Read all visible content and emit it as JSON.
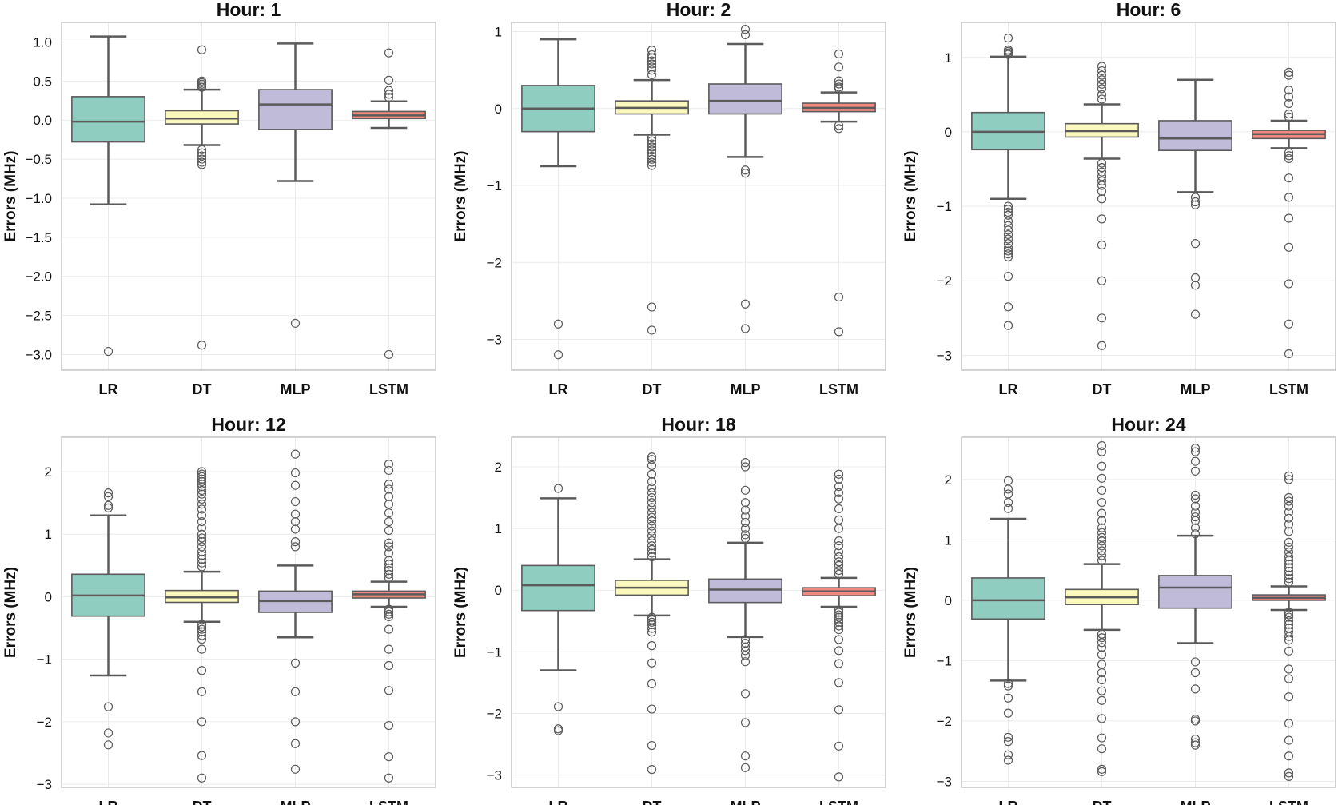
{
  "colors": {
    "LR": "#8fcdc1",
    "DT": "#fbf8bd",
    "MLP": "#bfbbd9",
    "LSTM": "#f08a80",
    "line": "#5b5b5b",
    "grid": "#ebebeb",
    "frame": "#c8c8c8"
  },
  "chart_data": [
    {
      "type": "box",
      "title": "Hour: 1",
      "ylabel": "Errors (MHz)",
      "ylim": [
        -3.2,
        1.25
      ],
      "yticks": [
        1.0,
        0.5,
        0.0,
        -0.5,
        -1.0,
        -1.5,
        -2.0,
        -2.5,
        -3.0
      ],
      "ytick_labels": [
        "1.0",
        "0.5",
        "0.0",
        "−0.5",
        "−1.0",
        "−1.5",
        "−2.0",
        "−2.5",
        "−3.0"
      ],
      "categories": [
        "LR",
        "DT",
        "MLP",
        "LSTM"
      ],
      "boxes": [
        {
          "name": "LR",
          "q1": -0.28,
          "median": -0.02,
          "q3": 0.3,
          "whislo": -1.08,
          "whishi": 1.07,
          "fliers": [
            -2.96
          ]
        },
        {
          "name": "DT",
          "q1": -0.05,
          "median": 0.02,
          "q3": 0.12,
          "whislo": -0.32,
          "whishi": 0.39,
          "fliers": [
            0.9,
            0.5,
            0.48,
            0.46,
            0.44,
            0.42,
            -0.38,
            -0.42,
            -0.46,
            -0.5,
            -0.54,
            -0.57,
            -2.88
          ]
        },
        {
          "name": "MLP",
          "q1": -0.12,
          "median": 0.2,
          "q3": 0.39,
          "whislo": -0.78,
          "whishi": 0.98,
          "fliers": [
            -2.6
          ]
        },
        {
          "name": "LSTM",
          "q1": 0.02,
          "median": 0.06,
          "q3": 0.11,
          "whislo": -0.1,
          "whishi": 0.24,
          "fliers": [
            0.86,
            0.51,
            0.38,
            0.33,
            0.29,
            -3.0
          ]
        }
      ]
    },
    {
      "type": "box",
      "title": "Hour: 2",
      "ylabel": "Errors (MHz)",
      "ylim": [
        -3.4,
        1.12
      ],
      "yticks": [
        1,
        0,
        -1,
        -2,
        -3
      ],
      "ytick_labels": [
        "1",
        "0",
        "−1",
        "−2",
        "−3"
      ],
      "categories": [
        "LR",
        "DT",
        "MLP",
        "LSTM"
      ],
      "boxes": [
        {
          "name": "LR",
          "q1": -0.3,
          "median": 0.0,
          "q3": 0.3,
          "whislo": -0.75,
          "whishi": 0.9,
          "fliers": [
            -2.8,
            -3.2
          ]
        },
        {
          "name": "DT",
          "q1": -0.07,
          "median": 0.01,
          "q3": 0.1,
          "whislo": -0.34,
          "whishi": 0.37,
          "fliers": [
            0.76,
            0.7,
            0.66,
            0.62,
            0.58,
            0.54,
            0.5,
            0.44,
            -0.38,
            -0.42,
            -0.46,
            -0.5,
            -0.54,
            -0.58,
            -0.62,
            -0.66,
            -0.7,
            -0.74,
            -2.58,
            -2.88
          ]
        },
        {
          "name": "MLP",
          "q1": -0.07,
          "median": 0.1,
          "q3": 0.32,
          "whislo": -0.63,
          "whishi": 0.84,
          "fliers": [
            1.03,
            0.96,
            -0.8,
            -0.84,
            -2.54,
            -2.86
          ]
        },
        {
          "name": "LSTM",
          "q1": -0.04,
          "median": 0.01,
          "q3": 0.07,
          "whislo": -0.17,
          "whishi": 0.21,
          "fliers": [
            0.71,
            0.54,
            0.36,
            0.32,
            0.28,
            0.26,
            -0.22,
            -0.26,
            -2.45,
            -2.9
          ]
        }
      ]
    },
    {
      "type": "box",
      "title": "Hour: 6",
      "ylabel": "Errors (MHz)",
      "ylim": [
        -3.2,
        1.47
      ],
      "yticks": [
        1,
        0,
        -1,
        -2,
        -3
      ],
      "ytick_labels": [
        "1",
        "0",
        "−1",
        "−2",
        "−3"
      ],
      "categories": [
        "LR",
        "DT",
        "MLP",
        "LSTM"
      ],
      "boxes": [
        {
          "name": "LR",
          "q1": -0.24,
          "median": 0.0,
          "q3": 0.26,
          "whislo": -0.9,
          "whishi": 1.01,
          "fliers": [
            1.26,
            1.1,
            1.08,
            1.06,
            1.04,
            -1.0,
            -1.04,
            -1.08,
            -1.12,
            -1.2,
            -1.26,
            -1.32,
            -1.38,
            -1.44,
            -1.5,
            -1.56,
            -1.6,
            -1.64,
            -1.68,
            -1.94,
            -2.35,
            -2.6
          ]
        },
        {
          "name": "DT",
          "q1": -0.07,
          "median": 0.01,
          "q3": 0.11,
          "whislo": -0.36,
          "whishi": 0.37,
          "fliers": [
            0.88,
            0.82,
            0.76,
            0.7,
            0.64,
            0.58,
            0.5,
            0.44,
            -0.42,
            -0.48,
            -0.54,
            -0.6,
            -0.66,
            -0.72,
            -0.8,
            -0.9,
            -1.17,
            -1.52,
            -2.0,
            -2.5,
            -2.87
          ]
        },
        {
          "name": "MLP",
          "q1": -0.25,
          "median": -0.09,
          "q3": 0.15,
          "whislo": -0.81,
          "whishi": 0.7,
          "fliers": [
            -0.88,
            -0.94,
            -0.98,
            -1.5,
            -1.96,
            -2.06,
            -2.45
          ]
        },
        {
          "name": "LSTM",
          "q1": -0.09,
          "median": -0.03,
          "q3": 0.02,
          "whislo": -0.22,
          "whishi": 0.15,
          "fliers": [
            0.8,
            0.76,
            0.56,
            0.47,
            0.38,
            0.24,
            0.2,
            -0.28,
            -0.32,
            -0.36,
            -0.62,
            -0.88,
            -1.16,
            -1.55,
            -2.04,
            -2.58,
            -2.98
          ]
        }
      ]
    },
    {
      "type": "box",
      "title": "Hour: 12",
      "ylabel": "Errors (MHz)",
      "ylim": [
        -3.05,
        2.55
      ],
      "yticks": [
        2,
        1,
        0,
        -1,
        -2,
        -3
      ],
      "ytick_labels": [
        "2",
        "1",
        "0",
        "−1",
        "−2",
        "−3"
      ],
      "categories": [
        "LR",
        "DT",
        "MLP",
        "LSTM"
      ],
      "boxes": [
        {
          "name": "LR",
          "q1": -0.31,
          "median": 0.02,
          "q3": 0.36,
          "whislo": -1.26,
          "whishi": 1.3,
          "fliers": [
            1.66,
            1.6,
            1.46,
            1.42,
            -1.76,
            -2.18,
            -2.37
          ]
        },
        {
          "name": "DT",
          "q1": -0.09,
          "median": -0.01,
          "q3": 0.1,
          "whislo": -0.4,
          "whishi": 0.4,
          "fliers": [
            2.0,
            1.96,
            1.92,
            1.88,
            1.84,
            1.8,
            1.76,
            1.7,
            1.64,
            1.56,
            1.48,
            1.4,
            1.3,
            1.2,
            1.1,
            1.0,
            0.94,
            0.88,
            0.8,
            0.72,
            0.66,
            0.6,
            0.54,
            0.48,
            -0.44,
            -0.48,
            -0.52,
            -0.56,
            -0.62,
            -0.68,
            -0.84,
            -1.18,
            -1.52,
            -2.0,
            -2.54,
            -2.9
          ]
        },
        {
          "name": "MLP",
          "q1": -0.25,
          "median": -0.07,
          "q3": 0.09,
          "whislo": -0.65,
          "whishi": 0.5,
          "fliers": [
            2.28,
            1.98,
            1.78,
            1.52,
            1.32,
            1.2,
            1.08,
            0.88,
            0.8,
            -1.06,
            -1.52,
            -2.0,
            -2.35,
            -2.76
          ]
        },
        {
          "name": "LSTM",
          "q1": -0.02,
          "median": 0.04,
          "q3": 0.09,
          "whislo": -0.16,
          "whishi": 0.24,
          "fliers": [
            2.12,
            2.02,
            1.8,
            1.72,
            1.6,
            1.48,
            1.34,
            1.2,
            1.06,
            0.86,
            0.8,
            0.7,
            0.58,
            0.52,
            0.46,
            0.42,
            0.36,
            0.3,
            -0.2,
            -0.24,
            -0.28,
            -0.32,
            -0.52,
            -0.84,
            -1.1,
            -1.5,
            -2.06,
            -2.56,
            -2.9
          ]
        }
      ]
    },
    {
      "type": "box",
      "title": "Hour: 18",
      "ylabel": "Errors (MHz)",
      "ylim": [
        -3.2,
        2.48
      ],
      "yticks": [
        2,
        1,
        0,
        -1,
        -2,
        -3
      ],
      "ytick_labels": [
        "2",
        "1",
        "0",
        "−1",
        "−2",
        "−3"
      ],
      "categories": [
        "LR",
        "DT",
        "MLP",
        "LSTM"
      ],
      "boxes": [
        {
          "name": "LR",
          "q1": -0.33,
          "median": 0.08,
          "q3": 0.4,
          "whislo": -1.3,
          "whishi": 1.49,
          "fliers": [
            1.65,
            -1.89,
            -2.25,
            -2.28
          ]
        },
        {
          "name": "DT",
          "q1": -0.08,
          "median": 0.04,
          "q3": 0.16,
          "whislo": -0.41,
          "whishi": 0.5,
          "fliers": [
            2.16,
            2.12,
            2.02,
            1.88,
            1.76,
            1.66,
            1.58,
            1.5,
            1.42,
            1.34,
            1.26,
            1.18,
            1.12,
            1.04,
            0.96,
            0.88,
            0.8,
            0.72,
            0.66,
            0.6,
            0.54,
            -0.44,
            -0.48,
            -0.52,
            -0.56,
            -0.62,
            -0.68,
            -0.9,
            -1.18,
            -1.52,
            -1.93,
            -2.52,
            -2.91
          ]
        },
        {
          "name": "MLP",
          "q1": -0.2,
          "median": 0.01,
          "q3": 0.18,
          "whislo": -0.76,
          "whishi": 0.77,
          "fliers": [
            2.07,
            2.0,
            1.62,
            1.42,
            1.3,
            1.2,
            1.1,
            1.0,
            0.9,
            0.84,
            -0.8,
            -0.86,
            -0.92,
            -0.98,
            -1.06,
            -1.16,
            -1.68,
            -2.15,
            -2.69,
            -2.88
          ]
        },
        {
          "name": "LSTM",
          "q1": -0.09,
          "median": -0.02,
          "q3": 0.04,
          "whislo": -0.27,
          "whishi": 0.2,
          "fliers": [
            1.88,
            1.8,
            1.68,
            1.58,
            1.48,
            1.32,
            1.14,
            1.0,
            0.8,
            0.72,
            0.62,
            0.54,
            0.46,
            0.4,
            0.32,
            0.26,
            -0.32,
            -0.36,
            -0.4,
            -0.44,
            -0.48,
            -0.52,
            -0.58,
            -0.64,
            -0.8,
            -0.98,
            -1.19,
            -1.5,
            -1.94,
            -2.53,
            -3.03
          ]
        }
      ]
    },
    {
      "type": "box",
      "title": "Hour: 24",
      "ylabel": "Errors (MHz)",
      "ylim": [
        -3.1,
        2.7
      ],
      "yticks": [
        2,
        1,
        0,
        -1,
        -2,
        -3
      ],
      "ytick_labels": [
        "2",
        "1",
        "0",
        "−1",
        "−2",
        "−3"
      ],
      "categories": [
        "LR",
        "DT",
        "MLP",
        "LSTM"
      ],
      "boxes": [
        {
          "name": "LR",
          "q1": -0.31,
          "median": 0.0,
          "q3": 0.37,
          "whislo": -1.33,
          "whishi": 1.35,
          "fliers": [
            1.98,
            1.84,
            1.76,
            1.62,
            1.52,
            -1.38,
            -1.42,
            -1.62,
            -1.87,
            -2.27,
            -2.34,
            -2.56,
            -2.65
          ]
        },
        {
          "name": "DT",
          "q1": -0.07,
          "median": 0.05,
          "q3": 0.18,
          "whislo": -0.49,
          "whishi": 0.6,
          "fliers": [
            2.56,
            2.46,
            2.22,
            2.02,
            1.82,
            1.62,
            1.44,
            1.32,
            1.2,
            1.12,
            1.04,
            0.98,
            0.9,
            0.82,
            0.74,
            0.66,
            -0.56,
            -0.62,
            -0.7,
            -0.78,
            -0.9,
            -1.06,
            -1.2,
            -1.32,
            -1.5,
            -1.66,
            -1.96,
            -2.28,
            -2.46,
            -2.8,
            -2.84
          ]
        },
        {
          "name": "MLP",
          "q1": -0.13,
          "median": 0.21,
          "q3": 0.41,
          "whislo": -0.71,
          "whishi": 1.07,
          "fliers": [
            2.52,
            2.46,
            2.3,
            2.14,
            1.74,
            1.68,
            1.56,
            1.46,
            1.38,
            1.32,
            1.2,
            1.1,
            -1.02,
            -1.2,
            -1.47,
            -1.97,
            -2.0,
            -2.3,
            -2.36,
            -2.4
          ]
        },
        {
          "name": "LSTM",
          "q1": 0.0,
          "median": 0.04,
          "q3": 0.09,
          "whislo": -0.16,
          "whishi": 0.23,
          "fliers": [
            2.06,
            2.0,
            1.7,
            1.64,
            1.56,
            1.46,
            1.36,
            1.26,
            1.14,
            0.96,
            0.88,
            0.8,
            0.72,
            0.66,
            0.6,
            0.54,
            0.48,
            0.42,
            0.36,
            0.3,
            -0.2,
            -0.24,
            -0.28,
            -0.34,
            -0.4,
            -0.46,
            -0.52,
            -0.6,
            -0.66,
            -0.84,
            -1.14,
            -1.3,
            -1.6,
            -2.04,
            -2.32,
            -2.58,
            -2.86,
            -2.92
          ]
        }
      ]
    }
  ]
}
